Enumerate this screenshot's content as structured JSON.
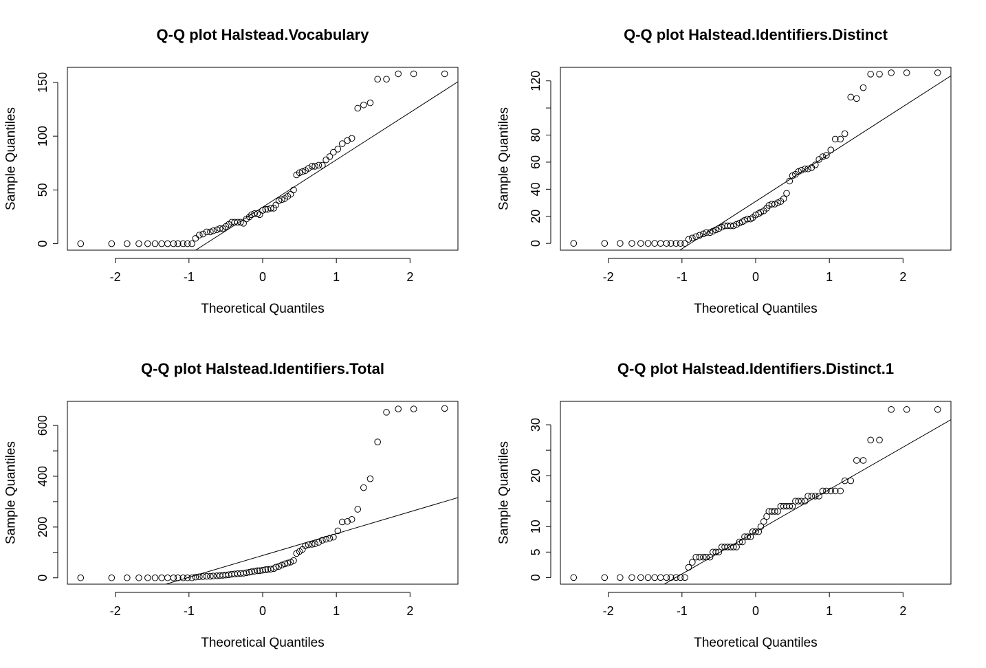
{
  "chart_data": [
    {
      "type": "scatter",
      "title": "Q-Q plot  Halstead.Vocabulary",
      "xlabel": "Theoretical Quantiles",
      "ylabel": "Sample Quantiles",
      "xlim": [
        -2.65,
        2.65
      ],
      "ylim": [
        -6,
        164
      ],
      "xticks": [
        -2,
        -1,
        0,
        1,
        2
      ],
      "yticks": [
        0,
        50,
        100,
        150
      ],
      "yticks_minor": [],
      "line": {
        "intercept": 34,
        "slope": 44
      },
      "x": [
        -2.47,
        -2.05,
        -1.84,
        -1.68,
        -1.56,
        -1.46,
        -1.37,
        -1.29,
        -1.21,
        -1.15,
        -1.08,
        -1.02,
        -0.96,
        -0.91,
        -0.86,
        -0.81,
        -0.76,
        -0.71,
        -0.67,
        -0.62,
        -0.58,
        -0.54,
        -0.5,
        -0.46,
        -0.42,
        -0.38,
        -0.34,
        -0.3,
        -0.26,
        -0.22,
        -0.18,
        -0.15,
        -0.11,
        -0.07,
        -0.04,
        0,
        0.04,
        0.07,
        0.11,
        0.15,
        0.18,
        0.22,
        0.26,
        0.3,
        0.34,
        0.38,
        0.42,
        0.46,
        0.5,
        0.54,
        0.58,
        0.62,
        0.67,
        0.71,
        0.76,
        0.81,
        0.86,
        0.91,
        0.96,
        1.02,
        1.08,
        1.15,
        1.21,
        1.29,
        1.37,
        1.46,
        1.56,
        1.68,
        1.84,
        2.05,
        2.47
      ],
      "y": [
        0,
        0,
        0,
        0,
        0,
        0,
        0,
        0,
        0,
        0,
        0,
        0,
        0,
        5,
        8,
        9,
        11,
        11,
        12,
        13,
        14,
        14,
        16,
        18,
        20,
        20,
        20,
        20,
        19,
        23,
        25,
        27,
        28,
        28,
        27,
        31,
        32,
        32,
        33,
        33,
        36,
        40,
        41,
        42,
        44,
        46,
        50,
        64,
        66,
        67,
        68,
        70,
        72,
        72,
        73,
        73,
        78,
        81,
        85,
        88,
        93,
        96,
        98,
        126,
        129,
        131,
        153,
        153,
        158,
        158,
        158
      ]
    },
    {
      "type": "scatter",
      "title": "Q-Q plot  Halstead.Identifiers.Distinct",
      "xlabel": "Theoretical Quantiles",
      "ylabel": "Sample Quantiles",
      "xlim": [
        -2.65,
        2.65
      ],
      "ylim": [
        -5,
        130
      ],
      "xticks": [
        -2,
        -1,
        0,
        1,
        2
      ],
      "yticks": [
        0,
        20,
        40,
        60,
        80,
        120
      ],
      "yticks_minor": [
        100
      ],
      "line": {
        "intercept": 31,
        "slope": 35
      },
      "x": [
        -2.47,
        -2.05,
        -1.84,
        -1.68,
        -1.56,
        -1.46,
        -1.37,
        -1.29,
        -1.21,
        -1.15,
        -1.08,
        -1.02,
        -0.96,
        -0.91,
        -0.86,
        -0.81,
        -0.76,
        -0.71,
        -0.67,
        -0.62,
        -0.58,
        -0.54,
        -0.5,
        -0.46,
        -0.42,
        -0.38,
        -0.34,
        -0.3,
        -0.26,
        -0.22,
        -0.18,
        -0.15,
        -0.11,
        -0.07,
        -0.04,
        0,
        0.04,
        0.07,
        0.11,
        0.15,
        0.18,
        0.22,
        0.26,
        0.3,
        0.34,
        0.38,
        0.42,
        0.46,
        0.5,
        0.54,
        0.58,
        0.62,
        0.67,
        0.71,
        0.76,
        0.81,
        0.86,
        0.91,
        0.96,
        1.02,
        1.08,
        1.15,
        1.21,
        1.29,
        1.37,
        1.46,
        1.56,
        1.68,
        1.84,
        2.05,
        2.47
      ],
      "y": [
        0,
        0,
        0,
        0,
        0,
        0,
        0,
        0,
        0,
        0,
        0,
        0,
        0,
        3,
        4,
        5,
        6,
        7,
        8,
        8,
        9,
        10,
        11,
        12,
        13,
        13,
        13,
        13,
        14,
        15,
        16,
        17,
        18,
        18,
        19,
        21,
        22,
        23,
        24,
        26,
        28,
        29,
        29,
        30,
        31,
        33,
        37,
        46,
        50,
        51,
        53,
        54,
        55,
        55,
        56,
        58,
        62,
        64,
        65,
        69,
        77,
        77,
        81,
        108,
        107,
        115,
        125,
        125,
        126,
        126,
        126
      ]
    },
    {
      "type": "scatter",
      "title": "Q-Q plot  Halstead.Identifiers.Total",
      "xlabel": "Theoretical Quantiles",
      "ylabel": "Sample Quantiles",
      "xlim": [
        -2.65,
        2.65
      ],
      "ylim": [
        -25,
        695
      ],
      "xticks": [
        -2,
        -1,
        0,
        1,
        2
      ],
      "yticks": [
        0,
        200,
        400,
        600
      ],
      "yticks_minor": [
        100,
        300,
        500
      ],
      "line": {
        "intercept": 88,
        "slope": 86
      },
      "x": [
        -2.47,
        -2.05,
        -1.84,
        -1.68,
        -1.56,
        -1.46,
        -1.37,
        -1.29,
        -1.21,
        -1.15,
        -1.08,
        -1.02,
        -0.96,
        -0.91,
        -0.86,
        -0.81,
        -0.76,
        -0.71,
        -0.67,
        -0.62,
        -0.58,
        -0.54,
        -0.5,
        -0.46,
        -0.42,
        -0.38,
        -0.34,
        -0.3,
        -0.26,
        -0.22,
        -0.18,
        -0.15,
        -0.11,
        -0.07,
        -0.04,
        0,
        0.04,
        0.07,
        0.11,
        0.15,
        0.18,
        0.22,
        0.26,
        0.3,
        0.34,
        0.38,
        0.42,
        0.46,
        0.5,
        0.54,
        0.58,
        0.62,
        0.67,
        0.71,
        0.76,
        0.81,
        0.86,
        0.91,
        0.96,
        1.02,
        1.08,
        1.15,
        1.21,
        1.29,
        1.37,
        1.46,
        1.56,
        1.68,
        1.84,
        2.05,
        2.47
      ],
      "y": [
        0,
        0,
        0,
        0,
        0,
        0,
        0,
        0,
        0,
        0,
        0,
        0,
        0,
        3,
        4,
        5,
        6,
        6,
        7,
        8,
        9,
        10,
        11,
        12,
        14,
        15,
        16,
        17,
        18,
        20,
        22,
        24,
        26,
        28,
        28,
        30,
        32,
        33,
        34,
        36,
        42,
        45,
        50,
        55,
        58,
        62,
        68,
        96,
        104,
        112,
        126,
        130,
        132,
        134,
        140,
        148,
        152,
        156,
        160,
        185,
        220,
        222,
        230,
        270,
        355,
        390,
        535,
        652,
        665,
        665,
        667
      ]
    },
    {
      "type": "scatter",
      "title": "Q-Q plot  Halstead.Identifiers.Distinct.1",
      "xlabel": "Theoretical Quantiles",
      "ylabel": "Sample Quantiles",
      "xlim": [
        -2.65,
        2.65
      ],
      "ylim": [
        -1.3,
        34.6
      ],
      "xticks": [
        -2,
        -1,
        0,
        1,
        2
      ],
      "yticks": [
        0,
        5,
        10,
        20,
        30
      ],
      "yticks_minor": [
        15,
        25
      ],
      "line": {
        "intercept": 9,
        "slope": 8.3
      },
      "x": [
        -2.47,
        -2.05,
        -1.84,
        -1.68,
        -1.56,
        -1.46,
        -1.37,
        -1.29,
        -1.21,
        -1.15,
        -1.08,
        -1.02,
        -0.96,
        -0.91,
        -0.86,
        -0.81,
        -0.76,
        -0.71,
        -0.67,
        -0.62,
        -0.58,
        -0.54,
        -0.5,
        -0.46,
        -0.42,
        -0.38,
        -0.34,
        -0.3,
        -0.26,
        -0.22,
        -0.18,
        -0.15,
        -0.11,
        -0.07,
        -0.04,
        0,
        0.04,
        0.07,
        0.11,
        0.15,
        0.18,
        0.22,
        0.26,
        0.3,
        0.34,
        0.38,
        0.42,
        0.46,
        0.5,
        0.54,
        0.58,
        0.62,
        0.67,
        0.71,
        0.76,
        0.81,
        0.86,
        0.91,
        0.96,
        1.02,
        1.08,
        1.15,
        1.21,
        1.29,
        1.37,
        1.46,
        1.56,
        1.68,
        1.84,
        2.05,
        2.47
      ],
      "y": [
        0,
        0,
        0,
        0,
        0,
        0,
        0,
        0,
        0,
        0,
        0,
        0,
        0,
        2,
        3,
        4,
        4,
        4,
        4,
        4,
        5,
        5,
        5,
        6,
        6,
        6,
        6,
        6,
        6,
        7,
        7,
        8,
        8,
        8,
        9,
        9,
        9,
        10,
        11,
        12,
        13,
        13,
        13,
        13,
        14,
        14,
        14,
        14,
        14,
        15,
        15,
        15,
        15,
        16,
        16,
        16,
        16,
        17,
        17,
        17,
        17,
        17,
        19,
        19,
        23,
        23,
        27,
        27,
        33,
        33,
        33
      ]
    }
  ]
}
